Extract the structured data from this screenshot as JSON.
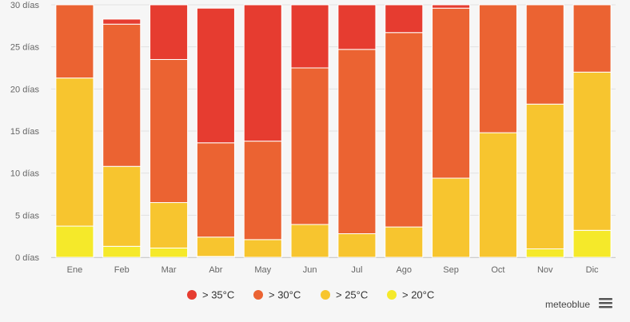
{
  "chart_data": {
    "type": "bar",
    "stacked": true,
    "categories": [
      "Ene",
      "Feb",
      "Mar",
      "Abr",
      "May",
      "Jun",
      "Jul",
      "Ago",
      "Sep",
      "Oct",
      "Nov",
      "Dic"
    ],
    "series": [
      {
        "name": "> 20°C",
        "color": "#f5e92a",
        "values": [
          3.7,
          1.3,
          1.1,
          0.1,
          0.0,
          0.0,
          0.0,
          0.0,
          0.0,
          0.0,
          1.0,
          3.2
        ]
      },
      {
        "name": "> 25°C",
        "color": "#f7c52f",
        "values": [
          17.6,
          9.5,
          5.4,
          2.3,
          2.1,
          3.9,
          2.8,
          3.6,
          9.4,
          14.8,
          17.2,
          18.8
        ]
      },
      {
        "name": "> 30°C",
        "color": "#eb6332",
        "values": [
          9.7,
          16.9,
          17.0,
          11.2,
          11.7,
          18.6,
          21.9,
          23.1,
          20.2,
          16.2,
          12.8,
          9.0
        ]
      },
      {
        "name": "> 35°C",
        "color": "#e63c30",
        "values": [
          0.0,
          0.6,
          7.5,
          16.0,
          17.2,
          7.5,
          6.3,
          4.3,
          0.4,
          0.0,
          0.0,
          0.0
        ]
      }
    ],
    "yticks": [
      "0 días",
      "5 días",
      "10 días",
      "15 días",
      "20 días",
      "25 días",
      "30 días"
    ],
    "ylim": [
      0,
      30
    ],
    "grid": true,
    "legend_position": "bottom-center"
  },
  "legend": {
    "items": [
      {
        "label": "> 35°C",
        "color": "#e63c30"
      },
      {
        "label": "> 30°C",
        "color": "#eb6332"
      },
      {
        "label": "> 25°C",
        "color": "#f7c52f"
      },
      {
        "label": "> 20°C",
        "color": "#f5e92a"
      }
    ]
  },
  "brand": {
    "name": "meteoblue"
  },
  "menu": {
    "icon": "hamburger-menu-icon"
  }
}
